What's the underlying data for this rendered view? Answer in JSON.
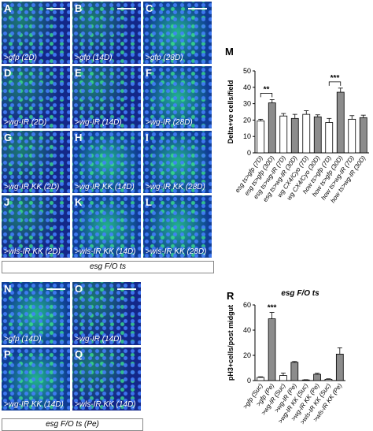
{
  "panels_top": [
    {
      "letter": "A",
      "cap": ">gfp (2D)"
    },
    {
      "letter": "B",
      "cap": ">gfp (14D)"
    },
    {
      "letter": "C",
      "cap": ">gfp (28D)"
    },
    {
      "letter": "D",
      "cap": ">wg-IR (2D)"
    },
    {
      "letter": "E",
      "cap": ">wg-IR (14D)"
    },
    {
      "letter": "F",
      "cap": ">wg-IR (28D)"
    },
    {
      "letter": "G",
      "cap": ">wg-IR KK (2D)"
    },
    {
      "letter": "H",
      "cap": ">wg-IR KK (14D)"
    },
    {
      "letter": "I",
      "cap": ">wg-IR KK (28D)"
    },
    {
      "letter": "J",
      "cap": ">wls-IR KK (2D)"
    },
    {
      "letter": "K",
      "cap": ">wls-IR KK (14D)"
    },
    {
      "letter": "L",
      "cap": ">wls-IR KK (28D)"
    }
  ],
  "strip_top": "esg F/O ts",
  "panels_bottom": [
    {
      "letter": "N",
      "cap": ">gfp (14D)"
    },
    {
      "letter": "O",
      "cap": ">wg-IR (14D)"
    },
    {
      "letter": "P",
      "cap": ">wg-IR KK (14D)"
    },
    {
      "letter": "Q",
      "cap": ">wls-IR KK (14D)"
    }
  ],
  "strip_bottom": "esg F/O ts (Pe)",
  "chart_data": [
    {
      "panel": "M",
      "type": "bar",
      "ylabel": "Delta+ve cells/field",
      "ylim": [
        0,
        50
      ],
      "yticks": [
        0,
        10,
        20,
        30,
        40,
        50
      ],
      "categories": [
        "esg ts>gfp (7D)",
        "esg ts>gfp (30D)",
        "esg ts>wg-IR (7D)",
        "esg ts>wg-IR (30D)",
        "wg CX4/Cyo (7D)",
        "wg CX4/Cyo (30D)",
        "how ts>gfp (7D)",
        "how ts>gfp (30D)",
        "how ts>wg-IR (7D)",
        "how ts>wg-IR (30D)"
      ],
      "values": [
        19.5,
        30.5,
        22.5,
        21,
        23.5,
        22,
        18.5,
        37,
        20.5,
        21.5
      ],
      "errors": [
        1,
        2,
        1.5,
        2.5,
        2.2,
        1.2,
        2.5,
        2.5,
        2.2,
        1.5
      ],
      "fill": [
        "white",
        "gray",
        "white",
        "gray",
        "white",
        "gray",
        "white",
        "gray",
        "white",
        "gray"
      ],
      "significance": [
        {
          "pair": [
            0,
            1
          ],
          "label": "**"
        },
        {
          "pair": [
            6,
            7
          ],
          "label": "***"
        }
      ]
    },
    {
      "panel": "R",
      "type": "bar",
      "title": "esg F/O ts",
      "ylabel": "pH3+cells/post midgut",
      "ylim": [
        0,
        60
      ],
      "yticks": [
        0,
        20,
        40,
        60
      ],
      "categories": [
        ">gfp (Suc)",
        ">gfp (Pe)",
        ">wg-IR (Suc)",
        ">wg-IR (Pe)",
        ">wg-IR KK (Suc)",
        ">wg-IR KK (Pe)",
        ">wls-IR KK (Suc)",
        ">wls-IR KK (Pe)"
      ],
      "values": [
        2.5,
        49,
        4,
        14.5,
        0.5,
        5,
        1,
        21
      ],
      "errors": [
        0.5,
        5,
        2,
        0.6,
        0.2,
        0.8,
        0.4,
        5
      ],
      "fill": [
        "white",
        "gray",
        "white",
        "gray",
        "white",
        "gray",
        "white",
        "gray"
      ],
      "significance": [
        {
          "index": 1,
          "label": "***"
        }
      ]
    }
  ]
}
